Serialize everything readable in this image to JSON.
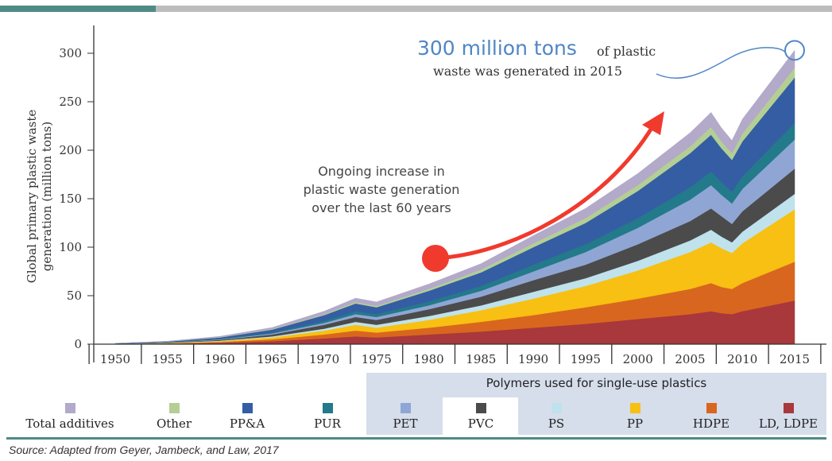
{
  "chart_data": {
    "type": "area",
    "stacked": true,
    "ylabel": "Global primary plastic waste generation (million tons)",
    "ylabel_lines": [
      "Global primary plastic waste",
      "generation (million tons)"
    ],
    "yticks": [
      0,
      50,
      100,
      150,
      200,
      250,
      300
    ],
    "ylim": [
      0,
      310
    ],
    "xlim": [
      1950,
      2015
    ],
    "xticks": [
      1950,
      1955,
      1960,
      1965,
      1970,
      1975,
      1980,
      1985,
      1990,
      1995,
      2000,
      2005,
      2010,
      2015
    ],
    "grid": false,
    "legend_position": "bottom",
    "x": [
      1950,
      1955,
      1960,
      1965,
      1970,
      1973,
      1975,
      1980,
      1985,
      1990,
      1995,
      2000,
      2005,
      2007,
      2008,
      2009,
      2010,
      2015
    ],
    "series": [
      {
        "name": "LD, LDPE",
        "color": "#a8383b",
        "values": [
          0.2,
          0.6,
          1.5,
          3,
          6,
          8,
          7,
          10,
          13,
          17,
          21,
          26,
          31,
          34,
          32,
          31,
          34,
          45
        ]
      },
      {
        "name": "HDPE",
        "color": "#d9661e",
        "values": [
          0.1,
          0.3,
          0.8,
          2,
          4,
          6,
          5,
          7,
          10,
          13,
          17,
          21,
          26,
          29,
          27,
          26,
          29,
          40
        ]
      },
      {
        "name": "PP",
        "color": "#f7c012",
        "values": [
          0.1,
          0.3,
          0.8,
          2,
          4,
          6,
          5,
          8,
          12,
          17,
          22,
          29,
          38,
          42,
          40,
          37,
          41,
          54
        ]
      },
      {
        "name": "PS",
        "color": "#bfe2ec",
        "values": [
          0.05,
          0.2,
          0.5,
          1,
          2,
          3,
          3,
          4,
          5,
          7,
          8,
          10,
          12,
          13,
          12,
          11,
          12,
          16
        ]
      },
      {
        "name": "PVC",
        "color": "#4b4b4b",
        "values": [
          0.1,
          0.3,
          0.8,
          2,
          4,
          5,
          5,
          7,
          9,
          12,
          14,
          17,
          20,
          22,
          21,
          19,
          21,
          26
        ]
      },
      {
        "name": "PET",
        "color": "#8fa6d4",
        "values": [
          0.05,
          0.2,
          0.5,
          1,
          2,
          3,
          3,
          4,
          6,
          9,
          13,
          17,
          22,
          24,
          22,
          21,
          23,
          30
        ]
      },
      {
        "name": "PUR",
        "color": "#237a8a",
        "values": [
          0.05,
          0.2,
          0.5,
          1,
          2,
          3,
          3,
          4,
          5,
          7,
          8,
          10,
          13,
          14,
          13,
          12,
          13,
          17
        ]
      },
      {
        "name": "PP&A",
        "color": "#345da3",
        "values": [
          0.2,
          0.6,
          1.5,
          3,
          6,
          8,
          7,
          11,
          14,
          18,
          22,
          28,
          35,
          38,
          35,
          33,
          36,
          47
        ]
      },
      {
        "name": "Other",
        "color": "#b3cf94",
        "values": [
          0.05,
          0.1,
          0.3,
          0.6,
          1,
          1.5,
          1.5,
          2,
          3,
          4,
          5,
          6,
          7,
          8,
          7,
          7,
          8,
          10
        ]
      },
      {
        "name": "Total additives",
        "color": "#b3a9c9",
        "values": [
          0.1,
          0.3,
          0.8,
          1.5,
          3,
          4,
          4,
          5,
          6,
          8,
          10,
          12,
          14,
          15,
          14,
          13,
          15,
          18
        ]
      }
    ]
  },
  "annotation": {
    "highlight": "300 million tons",
    "rest_line1": "of plastic",
    "rest_line2": "waste was generated in 2015",
    "highlight_color": "#4f86c6",
    "arrow_color": "#f03a2e"
  },
  "trend_text": [
    "Ongoing increase in",
    "plastic waste generation",
    "over the last 60 years"
  ],
  "legend_band_title": "Polymers used for single-use plastics",
  "legend": [
    {
      "label": "Total additives",
      "color": "#b3a9c9"
    },
    {
      "label": "Other",
      "color": "#b3cf94"
    },
    {
      "label": "PP&A",
      "color": "#345da3"
    },
    {
      "label": "PUR",
      "color": "#237a8a"
    },
    {
      "label": "PET",
      "color": "#8fa6d4"
    },
    {
      "label": "PVC",
      "color": "#4b4b4b"
    },
    {
      "label": "PS",
      "color": "#bfe2ec"
    },
    {
      "label": "PP",
      "color": "#f7c012"
    },
    {
      "label": "HDPE",
      "color": "#d9661e"
    },
    {
      "label": "LD, LDPE",
      "color": "#a8383b"
    }
  ],
  "source": "Source:   Adapted from Geyer, Jambeck, and Law, 2017"
}
